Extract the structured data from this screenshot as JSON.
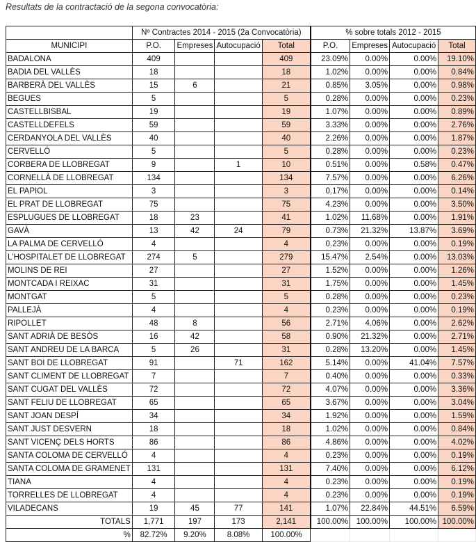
{
  "caption": "Resultats de la contractació de la segona convocatòria:",
  "header": {
    "group1": "Nº Contractes 2014 - 2015 (2a Convocatòria)",
    "group2": "% sobre totals  2012 - 2015",
    "columns": [
      "MUNICIPI",
      "P.O.",
      "Empreses",
      "Autocupació",
      "Total",
      "P.O.",
      "Empreses",
      "Autocupació",
      "Total"
    ]
  },
  "colors": {
    "highlight": "#fbd5c3"
  },
  "rows": [
    [
      "BADALONA",
      "409",
      "",
      "",
      "409",
      "23.09%",
      "0.00%",
      "0.00%",
      "19.10%"
    ],
    [
      "BADIA DEL VALLÈS",
      "18",
      "",
      "",
      "18",
      "1.02%",
      "0.00%",
      "0.00%",
      "0.84%"
    ],
    [
      "BARBERÀ DEL VALLÈS",
      "15",
      "6",
      "",
      "21",
      "0.85%",
      "3.05%",
      "0.00%",
      "0.98%"
    ],
    [
      "BEGUES",
      "5",
      "",
      "",
      "5",
      "0.28%",
      "0.00%",
      "0.00%",
      "0.23%"
    ],
    [
      "CASTELLBISBAL",
      "19",
      "",
      "",
      "19",
      "1.07%",
      "0.00%",
      "0.00%",
      "0.89%"
    ],
    [
      "CASTELLDEFELS",
      "59",
      "",
      "",
      "59",
      "3.33%",
      "0.00%",
      "0.00%",
      "2.76%"
    ],
    [
      "CERDANYOLA DEL VALLÈS",
      "40",
      "",
      "",
      "40",
      "2.26%",
      "0.00%",
      "0.00%",
      "1.87%"
    ],
    [
      "CERVELLÓ",
      "5",
      "",
      "",
      "5",
      "0.28%",
      "0.00%",
      "0.00%",
      "0.23%"
    ],
    [
      "CORBERA DE LLOBREGAT",
      "9",
      "",
      "1",
      "10",
      "0.51%",
      "0.00%",
      "0.58%",
      "0.47%"
    ],
    [
      "CORNELLÀ DE LLOBREGAT",
      "134",
      "",
      "",
      "134",
      "7.57%",
      "0.00%",
      "0.00%",
      "6.26%"
    ],
    [
      "EL PAPIOL",
      "3",
      "",
      "",
      "3",
      "0.17%",
      "0.00%",
      "0.00%",
      "0.14%"
    ],
    [
      "EL PRAT DE LLOBREGAT",
      "75",
      "",
      "",
      "75",
      "4.23%",
      "0.00%",
      "0.00%",
      "3.50%"
    ],
    [
      "ESPLUGUES DE LLOBREGAT",
      "18",
      "23",
      "",
      "41",
      "1.02%",
      "11.68%",
      "0.00%",
      "1.91%"
    ],
    [
      "GAVÀ",
      "13",
      "42",
      "24",
      "79",
      "0.73%",
      "21.32%",
      "13.87%",
      "3.69%"
    ],
    [
      "LA PALMA DE CERVELLÓ",
      "4",
      "",
      "",
      "4",
      "0.23%",
      "0.00%",
      "0.00%",
      "0.19%"
    ],
    [
      "L'HOSPITALET DE LLOBREGAT",
      "274",
      "5",
      "",
      "279",
      "15.47%",
      "2.54%",
      "0.00%",
      "13.03%"
    ],
    [
      "MOLINS DE REI",
      "27",
      "",
      "",
      "27",
      "1.52%",
      "0.00%",
      "0.00%",
      "1.26%"
    ],
    [
      "MONTCADA I REIXAC",
      "31",
      "",
      "",
      "31",
      "1.75%",
      "0.00%",
      "0.00%",
      "1.45%"
    ],
    [
      "MONTGAT",
      "5",
      "",
      "",
      "5",
      "0.28%",
      "0.00%",
      "0.00%",
      "0.23%"
    ],
    [
      "PALLEJÀ",
      "4",
      "",
      "",
      "4",
      "0.23%",
      "0.00%",
      "0.00%",
      "0.19%"
    ],
    [
      "RIPOLLET",
      "48",
      "8",
      "",
      "56",
      "2.71%",
      "4.06%",
      "0.00%",
      "2.62%"
    ],
    [
      "SANT ADRIÀ DE BESÒS",
      "16",
      "42",
      "",
      "58",
      "0.90%",
      "21.32%",
      "0.00%",
      "2.71%"
    ],
    [
      "SANT ANDREU DE LA BARCA",
      "5",
      "26",
      "",
      "31",
      "0.28%",
      "13.20%",
      "0.00%",
      "1.45%"
    ],
    [
      "SANT BOI DE LLOBREGAT",
      "91",
      "",
      "71",
      "162",
      "5.14%",
      "0.00%",
      "41.04%",
      "7.57%"
    ],
    [
      "SANT CLIMENT DE LLOBREGAT",
      "7",
      "",
      "",
      "7",
      "0.40%",
      "0.00%",
      "0.00%",
      "0.33%"
    ],
    [
      "SANT CUGAT DEL VALLÈS",
      "72",
      "",
      "",
      "72",
      "4.07%",
      "0.00%",
      "0.00%",
      "3.36%"
    ],
    [
      "SANT FELIU DE LLOBREGAT",
      "65",
      "",
      "",
      "65",
      "3.67%",
      "0.00%",
      "0.00%",
      "3.04%"
    ],
    [
      "SANT JOAN DESPÍ",
      "34",
      "",
      "",
      "34",
      "1.92%",
      "0.00%",
      "0.00%",
      "1.59%"
    ],
    [
      "SANT JUST DESVERN",
      "18",
      "",
      "",
      "18",
      "1.02%",
      "0.00%",
      "0.00%",
      "0.84%"
    ],
    [
      "SANT VICENÇ DELS HORTS",
      "86",
      "",
      "",
      "86",
      "4.86%",
      "0.00%",
      "0.00%",
      "4.02%"
    ],
    [
      "SANTA COLOMA DE CERVELLÓ",
      "4",
      "",
      "",
      "4",
      "0.23%",
      "0.00%",
      "0.00%",
      "0.19%"
    ],
    [
      "SANTA COLOMA DE GRAMENET",
      "131",
      "",
      "",
      "131",
      "7.40%",
      "0.00%",
      "0.00%",
      "6.12%"
    ],
    [
      "TIANA",
      "4",
      "",
      "",
      "4",
      "0.23%",
      "0.00%",
      "0.00%",
      "0.19%"
    ],
    [
      "TORRELLES DE LLOBREGAT",
      "4",
      "",
      "",
      "4",
      "0.23%",
      "0.00%",
      "0.00%",
      "0.19%"
    ],
    [
      "VILADECANS",
      "19",
      "45",
      "77",
      "141",
      "1.07%",
      "22.84%",
      "44.51%",
      "6.59%"
    ]
  ],
  "totals": [
    "TOTALS",
    "1,771",
    "197",
    "173",
    "2,141",
    "100.00%",
    "100.00%",
    "100.00%",
    "100.00%"
  ],
  "percent_row": [
    "%",
    "82.72%",
    "9.20%",
    "8.08%",
    "100.00%"
  ]
}
